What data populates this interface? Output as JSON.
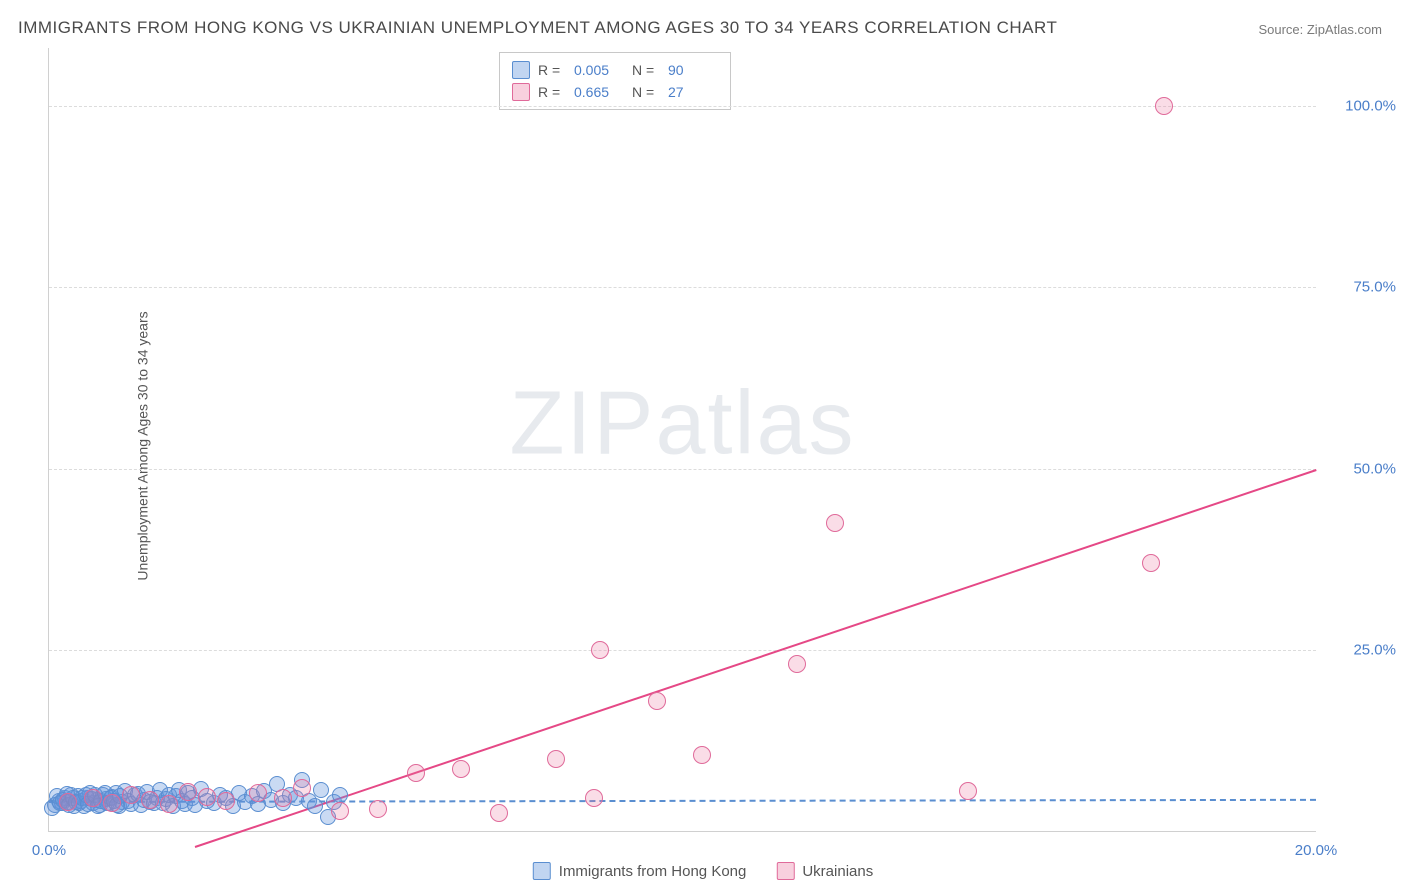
{
  "title": "IMMIGRANTS FROM HONG KONG VS UKRAINIAN UNEMPLOYMENT AMONG AGES 30 TO 34 YEARS CORRELATION CHART",
  "source": "Source: ZipAtlas.com",
  "y_axis_label": "Unemployment Among Ages 30 to 34 years",
  "watermark": "ZIPatlas",
  "chart": {
    "type": "scatter",
    "xlim": [
      0,
      20
    ],
    "ylim": [
      0,
      108
    ],
    "x_ticks": [
      {
        "v": 0,
        "label": "0.0%"
      },
      {
        "v": 20,
        "label": "20.0%"
      }
    ],
    "y_ticks": [
      {
        "v": 25,
        "label": "25.0%"
      },
      {
        "v": 50,
        "label": "50.0%"
      },
      {
        "v": 75,
        "label": "75.0%"
      },
      {
        "v": 100,
        "label": "100.0%"
      }
    ],
    "grid_color": "#dcdcdc",
    "background_color": "#ffffff",
    "marker_radius": 8,
    "series": [
      {
        "name": "Immigrants from Hong Kong",
        "key": "blue",
        "color_fill": "rgba(100,150,220,0.35)",
        "color_stroke": "#5a8ed0",
        "r_label": "R =",
        "r_value": "0.005",
        "n_label": "N =",
        "n_value": "90",
        "trend": {
          "x1": 0,
          "y1": 4.2,
          "x2": 20,
          "y2": 4.5,
          "style": "dashed"
        },
        "points": [
          [
            0.1,
            3.6
          ],
          [
            0.15,
            4.2
          ],
          [
            0.2,
            3.8
          ],
          [
            0.25,
            4.5
          ],
          [
            0.3,
            4.0
          ],
          [
            0.35,
            5.0
          ],
          [
            0.4,
            3.5
          ],
          [
            0.45,
            4.8
          ],
          [
            0.5,
            4.1
          ],
          [
            0.55,
            3.4
          ],
          [
            0.6,
            4.6
          ],
          [
            0.65,
            5.2
          ],
          [
            0.7,
            3.9
          ],
          [
            0.75,
            4.3
          ],
          [
            0.8,
            3.6
          ],
          [
            0.85,
            5.0
          ],
          [
            0.9,
            4.4
          ],
          [
            0.95,
            3.8
          ],
          [
            1.0,
            4.7
          ],
          [
            1.05,
            5.3
          ],
          [
            1.1,
            3.5
          ],
          [
            1.15,
            4.0
          ],
          [
            1.2,
            5.5
          ],
          [
            1.25,
            4.2
          ],
          [
            1.3,
            3.7
          ],
          [
            1.35,
            4.9
          ],
          [
            1.4,
            5.1
          ],
          [
            1.45,
            3.6
          ],
          [
            1.5,
            4.3
          ],
          [
            1.55,
            5.4
          ],
          [
            1.6,
            4.0
          ],
          [
            1.65,
            3.8
          ],
          [
            1.7,
            4.6
          ],
          [
            1.75,
            5.7
          ],
          [
            1.8,
            3.9
          ],
          [
            1.85,
            4.4
          ],
          [
            1.9,
            5.0
          ],
          [
            1.95,
            3.5
          ],
          [
            2.0,
            4.8
          ],
          [
            2.05,
            5.6
          ],
          [
            2.1,
            4.1
          ],
          [
            2.15,
            3.7
          ],
          [
            2.2,
            5.2
          ],
          [
            2.25,
            4.5
          ],
          [
            2.3,
            3.6
          ],
          [
            2.4,
            5.8
          ],
          [
            2.5,
            4.2
          ],
          [
            2.6,
            3.9
          ],
          [
            2.7,
            5.0
          ],
          [
            2.8,
            4.6
          ],
          [
            2.9,
            3.4
          ],
          [
            3.0,
            5.3
          ],
          [
            3.1,
            4.0
          ],
          [
            3.2,
            4.8
          ],
          [
            3.3,
            3.7
          ],
          [
            3.4,
            5.5
          ],
          [
            3.5,
            4.3
          ],
          [
            3.6,
            6.5
          ],
          [
            3.7,
            3.8
          ],
          [
            3.8,
            5.0
          ],
          [
            3.9,
            4.5
          ],
          [
            4.0,
            7.0
          ],
          [
            4.1,
            4.2
          ],
          [
            4.2,
            3.5
          ],
          [
            4.3,
            5.6
          ],
          [
            4.4,
            2.0
          ],
          [
            4.5,
            4.0
          ],
          [
            4.6,
            4.9
          ],
          [
            0.05,
            3.2
          ],
          [
            0.12,
            4.8
          ],
          [
            0.18,
            3.9
          ],
          [
            0.22,
            4.3
          ],
          [
            0.28,
            5.1
          ],
          [
            0.32,
            3.6
          ],
          [
            0.38,
            4.5
          ],
          [
            0.42,
            4.0
          ],
          [
            0.48,
            3.8
          ],
          [
            0.52,
            4.6
          ],
          [
            0.58,
            5.0
          ],
          [
            0.62,
            3.7
          ],
          [
            0.68,
            4.4
          ],
          [
            0.72,
            4.9
          ],
          [
            0.78,
            3.5
          ],
          [
            0.82,
            4.2
          ],
          [
            0.88,
            5.2
          ],
          [
            0.92,
            3.9
          ],
          [
            0.98,
            4.5
          ],
          [
            1.02,
            4.1
          ],
          [
            1.08,
            3.6
          ],
          [
            1.12,
            4.8
          ]
        ]
      },
      {
        "name": "Ukrainians",
        "key": "pink",
        "color_fill": "rgba(235,120,160,0.25)",
        "color_stroke": "#e06a9a",
        "r_label": "R =",
        "r_value": "0.665",
        "n_label": "N =",
        "n_value": "27",
        "trend": {
          "x1": 2.3,
          "y1": -2,
          "x2": 20,
          "y2": 50,
          "style": "solid"
        },
        "points": [
          [
            0.3,
            4.0
          ],
          [
            0.7,
            4.5
          ],
          [
            1.0,
            3.9
          ],
          [
            1.3,
            5.0
          ],
          [
            1.6,
            4.3
          ],
          [
            1.9,
            3.7
          ],
          [
            2.2,
            5.4
          ],
          [
            2.5,
            4.7
          ],
          [
            2.8,
            4.1
          ],
          [
            3.3,
            5.3
          ],
          [
            4.0,
            6.0
          ],
          [
            4.6,
            2.7
          ],
          [
            5.8,
            8.0
          ],
          [
            6.5,
            8.5
          ],
          [
            7.1,
            2.5
          ],
          [
            8.0,
            10.0
          ],
          [
            8.6,
            4.5
          ],
          [
            8.7,
            25.0
          ],
          [
            9.6,
            18.0
          ],
          [
            10.3,
            10.5
          ],
          [
            11.8,
            23.0
          ],
          [
            12.4,
            42.5
          ],
          [
            14.5,
            5.5
          ],
          [
            17.4,
            37.0
          ],
          [
            17.6,
            100.0
          ],
          [
            3.7,
            4.6
          ],
          [
            5.2,
            3.0
          ]
        ]
      }
    ]
  },
  "legend_bottom": [
    {
      "swatch": "blue",
      "label": "Immigrants from Hong Kong"
    },
    {
      "swatch": "pink",
      "label": "Ukrainians"
    }
  ]
}
